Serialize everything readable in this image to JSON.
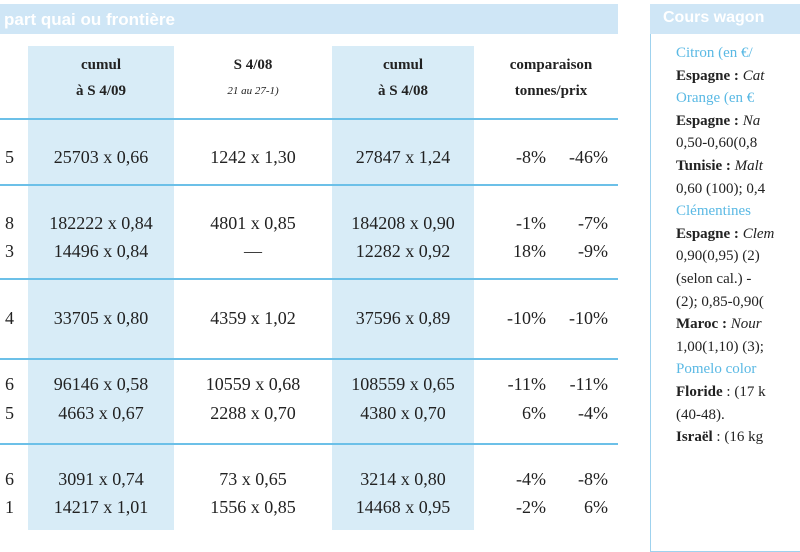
{
  "main_table": {
    "title": "part quai ou frontière",
    "columns": [
      {
        "line1": "cumul",
        "line2": "à S 4/09"
      },
      {
        "line1": "S 4/08",
        "line2": "21 au 27-1)"
      },
      {
        "line1": "cumul",
        "line2": "à S 4/08"
      },
      {
        "line1": "comparaison",
        "line2": "tonnes/prix"
      }
    ],
    "rows": [
      {
        "edge": "5",
        "cumul_s409": "25703 x 0,66",
        "s408": "1242 x 1,30",
        "cumul_s408": "27847 x 1,24",
        "tonnes": "-8%",
        "prix": "-46%"
      },
      {
        "edge": "8",
        "cumul_s409": "182222 x 0,84",
        "s408": "4801 x 0,85",
        "cumul_s408": "184208 x 0,90",
        "tonnes": "-1%",
        "prix": "-7%"
      },
      {
        "edge": "3",
        "cumul_s409": "14496 x 0,84",
        "s408": "—",
        "cumul_s408": "12282 x 0,92",
        "tonnes": "18%",
        "prix": "-9%"
      },
      {
        "edge": "4",
        "cumul_s409": "33705 x 0,80",
        "s408": "4359 x 1,02",
        "cumul_s408": "37596 x 0,89",
        "tonnes": "-10%",
        "prix": "-10%"
      },
      {
        "edge": "6",
        "cumul_s409": "96146 x 0,58",
        "s408": "10559 x 0,68",
        "cumul_s408": "108559 x 0,65",
        "tonnes": "-11%",
        "prix": "-11%"
      },
      {
        "edge": "5",
        "cumul_s409": "4663 x 0,67",
        "s408": "2288 x 0,70",
        "cumul_s408": "4380 x 0,70",
        "tonnes": "6%",
        "prix": "-4%"
      },
      {
        "edge": "6",
        "cumul_s409": "3091 x 0,74",
        "s408": "73 x 0,65",
        "cumul_s408": "3214 x 0,80",
        "tonnes": "-4%",
        "prix": "-8%"
      },
      {
        "edge": "1",
        "cumul_s409": "14217 x 1,01",
        "s408": "1556 x 0,85",
        "cumul_s408": "14468 x 0,95",
        "tonnes": "-2%",
        "prix": "6%"
      }
    ]
  },
  "side_panel": {
    "title": "Cours wagon",
    "lines": [
      {
        "parts": [
          {
            "t": "Citron",
            "s": "sec"
          },
          {
            "t": " (en €/",
            "s": "sec"
          }
        ]
      },
      {
        "parts": [
          {
            "t": "Espagne :",
            "s": "bold"
          },
          {
            "t": " Cat",
            "s": "it"
          }
        ]
      },
      {
        "parts": [
          {
            "t": "Orange",
            "s": "sec"
          },
          {
            "t": " (en €",
            "s": "sec"
          }
        ]
      },
      {
        "parts": [
          {
            "t": "Espagne :",
            "s": "bold"
          },
          {
            "t": "  Na",
            "s": "it"
          }
        ]
      },
      {
        "parts": [
          {
            "t": "0,50-0,60(0,8",
            "s": ""
          }
        ]
      },
      {
        "parts": [
          {
            "t": "Tunisie :",
            "s": "bold"
          },
          {
            "t": " Malt",
            "s": "it"
          }
        ]
      },
      {
        "parts": [
          {
            "t": "0,60 (100); 0,4",
            "s": ""
          }
        ]
      },
      {
        "parts": [
          {
            "t": "Clémentines",
            "s": "sec"
          }
        ]
      },
      {
        "parts": [
          {
            "t": "Espagne :",
            "s": "bold"
          },
          {
            "t": " Clem",
            "s": "it"
          }
        ]
      },
      {
        "parts": [
          {
            "t": "0,90(0,95)  (2)",
            "s": ""
          }
        ]
      },
      {
        "parts": [
          {
            "t": "(selon cal.) - ",
            "s": ""
          }
        ]
      },
      {
        "parts": [
          {
            "t": "(2); 0,85-0,90(",
            "s": ""
          }
        ]
      },
      {
        "parts": [
          {
            "t": "Maroc :",
            "s": "bold"
          },
          {
            "t": " Nour",
            "s": "it"
          }
        ]
      },
      {
        "parts": [
          {
            "t": "1,00(1,10) (3);",
            "s": ""
          }
        ]
      },
      {
        "parts": [
          {
            "t": "Pomelo color",
            "s": "sec"
          }
        ]
      },
      {
        "parts": [
          {
            "t": "Floride",
            "s": "bold"
          },
          {
            "t": " : (17 k",
            "s": ""
          }
        ]
      },
      {
        "parts": [
          {
            "t": "(40-48).",
            "s": ""
          }
        ]
      },
      {
        "parts": [
          {
            "t": "Israël",
            "s": "bold"
          },
          {
            "t": " : (16 kg",
            "s": ""
          }
        ]
      }
    ]
  }
}
